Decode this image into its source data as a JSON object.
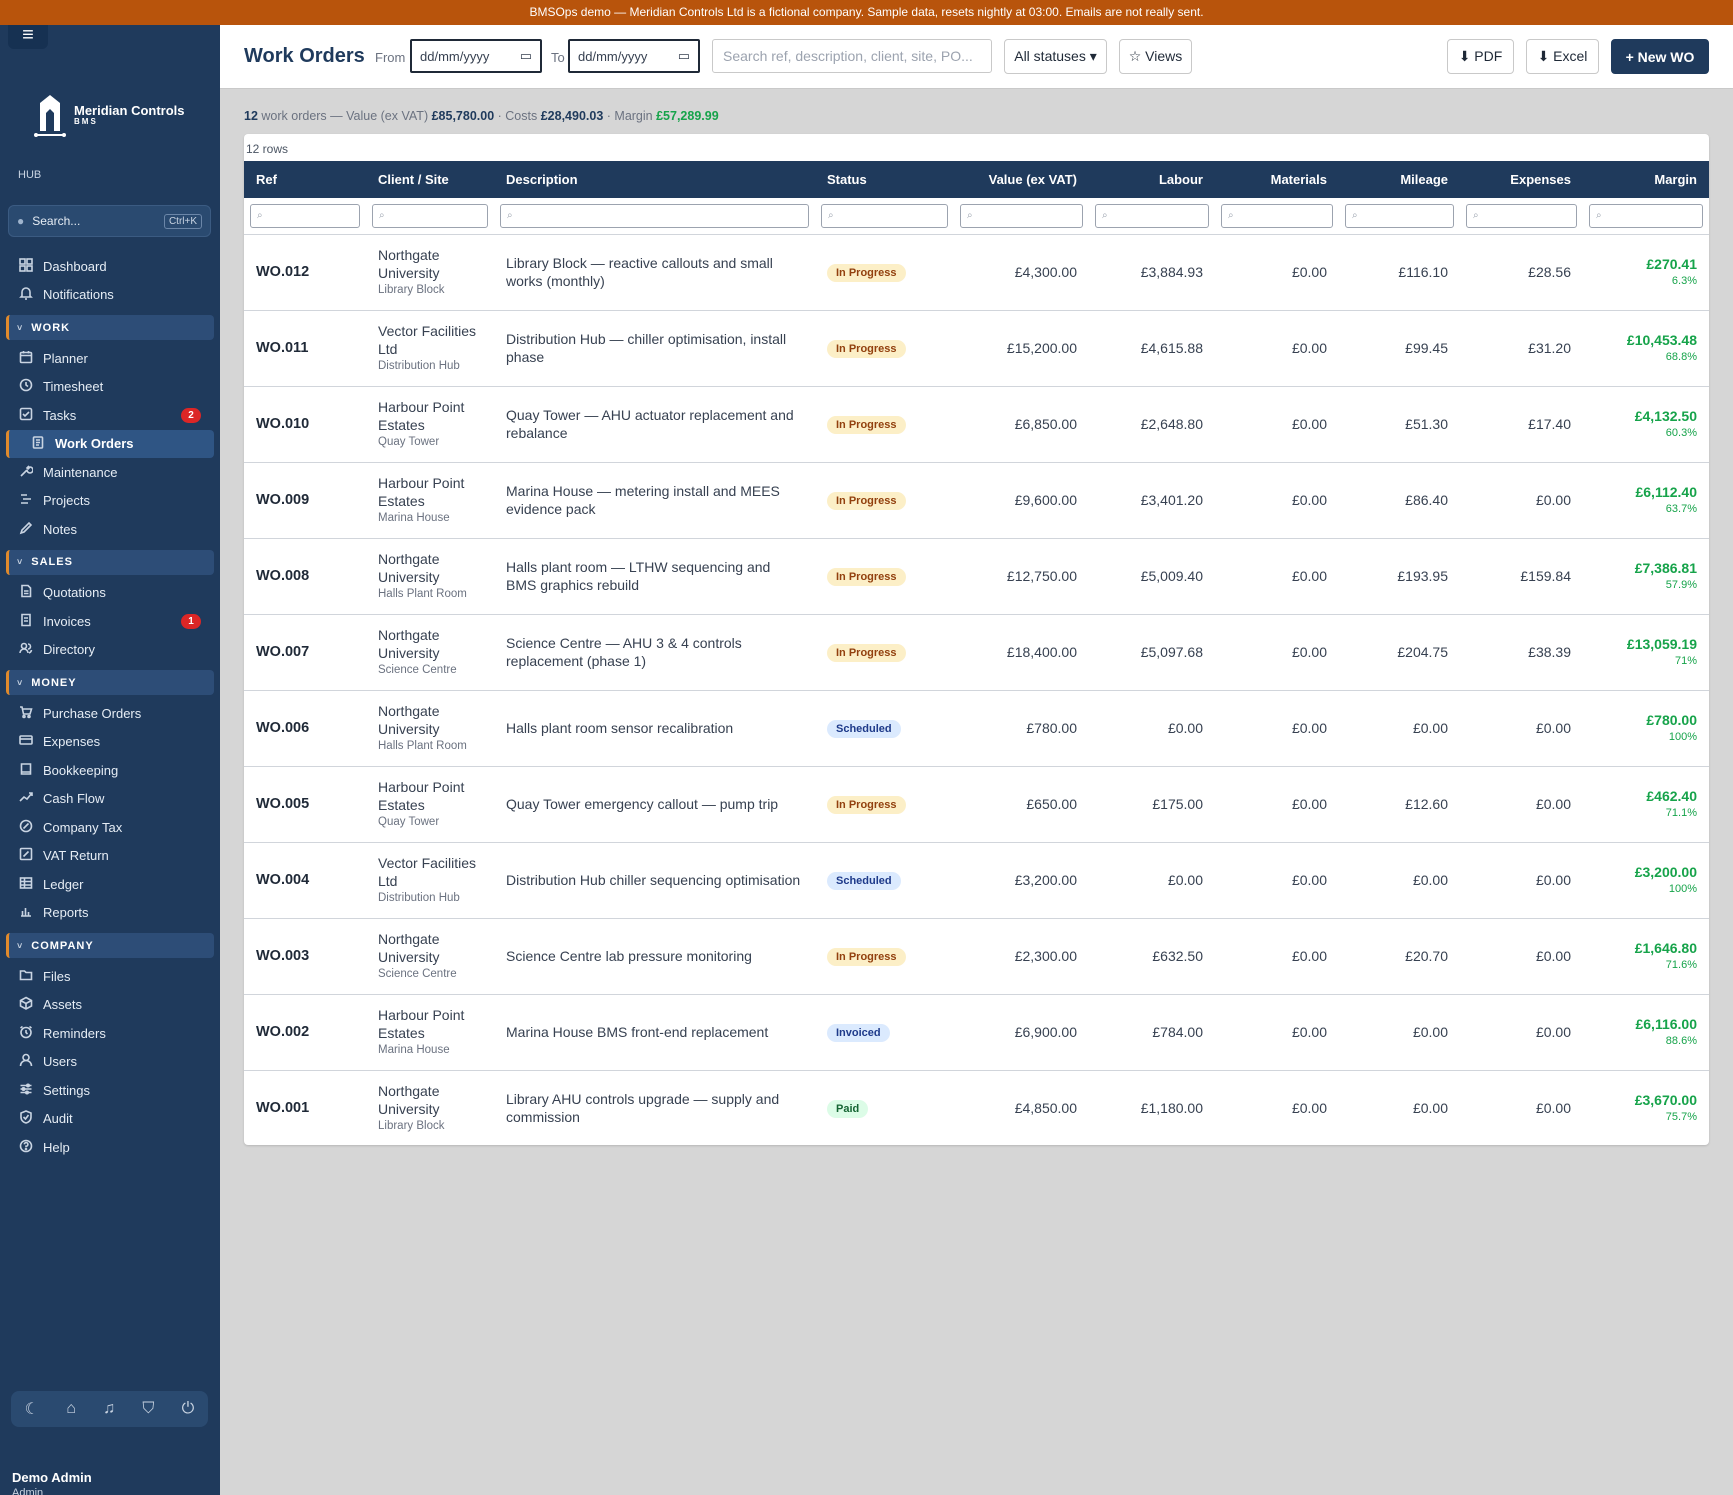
{
  "banner": "BMSOps demo — Meridian Controls Ltd is a fictional company. Sample data, resets nightly at 03:00. Emails are not really sent.",
  "sidebar": {
    "brand_name": "Meridian Controls",
    "brand_sub": "BMS",
    "hub_label": "HUB",
    "search_placeholder": "Search...",
    "search_shortcut": "Ctrl+K",
    "top_items": [
      {
        "label": "Dashboard",
        "icon": "grid-icon"
      },
      {
        "label": "Notifications",
        "icon": "bell-icon"
      }
    ],
    "sections": [
      {
        "title": "WORK",
        "items": [
          {
            "label": "Planner",
            "icon": "calendar-icon"
          },
          {
            "label": "Timesheet",
            "icon": "clock-icon"
          },
          {
            "label": "Tasks",
            "icon": "checkbox-icon",
            "badge": "2"
          },
          {
            "label": "Work Orders",
            "icon": "clipboard-icon",
            "active": true
          },
          {
            "label": "Maintenance",
            "icon": "wrench-icon"
          },
          {
            "label": "Projects",
            "icon": "projects-icon"
          },
          {
            "label": "Notes",
            "icon": "pencil-icon"
          }
        ]
      },
      {
        "title": "SALES",
        "items": [
          {
            "label": "Quotations",
            "icon": "document-icon"
          },
          {
            "label": "Invoices",
            "icon": "invoice-icon",
            "badge": "1"
          },
          {
            "label": "Directory",
            "icon": "people-icon"
          }
        ]
      },
      {
        "title": "MONEY",
        "items": [
          {
            "label": "Purchase Orders",
            "icon": "cart-icon"
          },
          {
            "label": "Expenses",
            "icon": "card-icon"
          },
          {
            "label": "Bookkeeping",
            "icon": "book-icon"
          },
          {
            "label": "Cash Flow",
            "icon": "trend-icon"
          },
          {
            "label": "Company Tax",
            "icon": "tax-icon"
          },
          {
            "label": "VAT Return",
            "icon": "vat-icon"
          },
          {
            "label": "Ledger",
            "icon": "table-icon"
          },
          {
            "label": "Reports",
            "icon": "bar-chart-icon"
          }
        ]
      },
      {
        "title": "COMPANY",
        "items": [
          {
            "label": "Files",
            "icon": "folder-icon"
          },
          {
            "label": "Assets",
            "icon": "box-icon"
          },
          {
            "label": "Reminders",
            "icon": "alarm-icon"
          },
          {
            "label": "Users",
            "icon": "user-icon"
          },
          {
            "label": "Settings",
            "icon": "sliders-icon"
          },
          {
            "label": "Audit",
            "icon": "shield-check-icon"
          },
          {
            "label": "Help",
            "icon": "help-icon"
          }
        ]
      }
    ],
    "bottom_icons": [
      "moon-icon",
      "home-icon",
      "bell-icon",
      "shield-icon",
      "power-icon"
    ],
    "user_name": "Demo Admin",
    "user_role": "Admin"
  },
  "topbar": {
    "title": "Work Orders",
    "from_label": "From",
    "to_label": "To",
    "from_value": "dd/mm/yyyy",
    "to_value": "dd/mm/yyyy",
    "search_placeholder": "Search ref, description, client, site, PO...",
    "status_filter": "All statuses ▾",
    "views_label": "☆ Views",
    "pdf_label": "⬇ PDF",
    "excel_label": "⬇ Excel",
    "new_label": "+ New WO"
  },
  "summary": {
    "count": "12",
    "count_text": "work orders — Value (ex VAT)",
    "value": "£85,780.00",
    "costs_text": "· Costs",
    "costs": "£28,490.03",
    "margin_text": "· Margin",
    "margin": "£57,289.99"
  },
  "table": {
    "row_count": "12 rows",
    "filter_placeholder": "⌕",
    "columns": [
      "Ref",
      "Client / Site",
      "Description",
      "Status",
      "Value (ex VAT)",
      "Labour",
      "Materials",
      "Mileage",
      "Expenses",
      "Margin"
    ],
    "rows": [
      {
        "ref": "WO.012",
        "client": "Northgate University",
        "site": "Library Block",
        "description": "Library Block — reactive callouts and small works (monthly)",
        "status": "In Progress",
        "status_kind": "progress",
        "value": "£4,300.00",
        "labour": "£3,884.93",
        "materials": "£0.00",
        "mileage": "£116.10",
        "expenses": "£28.56",
        "margin": "£270.41",
        "margin_pct": "6.3%"
      },
      {
        "ref": "WO.011",
        "client": "Vector Facilities Ltd",
        "site": "Distribution Hub",
        "description": "Distribution Hub — chiller optimisation, install phase",
        "status": "In Progress",
        "status_kind": "progress",
        "value": "£15,200.00",
        "labour": "£4,615.88",
        "materials": "£0.00",
        "mileage": "£99.45",
        "expenses": "£31.20",
        "margin": "£10,453.48",
        "margin_pct": "68.8%"
      },
      {
        "ref": "WO.010",
        "client": "Harbour Point Estates",
        "site": "Quay Tower",
        "description": "Quay Tower — AHU actuator replacement and rebalance",
        "status": "In Progress",
        "status_kind": "progress",
        "value": "£6,850.00",
        "labour": "£2,648.80",
        "materials": "£0.00",
        "mileage": "£51.30",
        "expenses": "£17.40",
        "margin": "£4,132.50",
        "margin_pct": "60.3%"
      },
      {
        "ref": "WO.009",
        "client": "Harbour Point Estates",
        "site": "Marina House",
        "description": "Marina House — metering install and MEES evidence pack",
        "status": "In Progress",
        "status_kind": "progress",
        "value": "£9,600.00",
        "labour": "£3,401.20",
        "materials": "£0.00",
        "mileage": "£86.40",
        "expenses": "£0.00",
        "margin": "£6,112.40",
        "margin_pct": "63.7%"
      },
      {
        "ref": "WO.008",
        "client": "Northgate University",
        "site": "Halls Plant Room",
        "description": "Halls plant room — LTHW sequencing and BMS graphics rebuild",
        "status": "In Progress",
        "status_kind": "progress",
        "value": "£12,750.00",
        "labour": "£5,009.40",
        "materials": "£0.00",
        "mileage": "£193.95",
        "expenses": "£159.84",
        "margin": "£7,386.81",
        "margin_pct": "57.9%"
      },
      {
        "ref": "WO.007",
        "client": "Northgate University",
        "site": "Science Centre",
        "description": "Science Centre — AHU 3 & 4 controls replacement (phase 1)",
        "status": "In Progress",
        "status_kind": "progress",
        "value": "£18,400.00",
        "labour": "£5,097.68",
        "materials": "£0.00",
        "mileage": "£204.75",
        "expenses": "£38.39",
        "margin": "£13,059.19",
        "margin_pct": "71%"
      },
      {
        "ref": "WO.006",
        "client": "Northgate University",
        "site": "Halls Plant Room",
        "description": "Halls plant room sensor recalibration",
        "status": "Scheduled",
        "status_kind": "scheduled",
        "value": "£780.00",
        "labour": "£0.00",
        "materials": "£0.00",
        "mileage": "£0.00",
        "expenses": "£0.00",
        "margin": "£780.00",
        "margin_pct": "100%"
      },
      {
        "ref": "WO.005",
        "client": "Harbour Point Estates",
        "site": "Quay Tower",
        "description": "Quay Tower emergency callout — pump trip",
        "status": "In Progress",
        "status_kind": "progress",
        "value": "£650.00",
        "labour": "£175.00",
        "materials": "£0.00",
        "mileage": "£12.60",
        "expenses": "£0.00",
        "margin": "£462.40",
        "margin_pct": "71.1%"
      },
      {
        "ref": "WO.004",
        "client": "Vector Facilities Ltd",
        "site": "Distribution Hub",
        "description": "Distribution Hub chiller sequencing optimisation",
        "status": "Scheduled",
        "status_kind": "scheduled",
        "value": "£3,200.00",
        "labour": "£0.00",
        "materials": "£0.00",
        "mileage": "£0.00",
        "expenses": "£0.00",
        "margin": "£3,200.00",
        "margin_pct": "100%"
      },
      {
        "ref": "WO.003",
        "client": "Northgate University",
        "site": "Science Centre",
        "description": "Science Centre lab pressure monitoring",
        "status": "In Progress",
        "status_kind": "progress",
        "value": "£2,300.00",
        "labour": "£632.50",
        "materials": "£0.00",
        "mileage": "£20.70",
        "expenses": "£0.00",
        "margin": "£1,646.80",
        "margin_pct": "71.6%"
      },
      {
        "ref": "WO.002",
        "client": "Harbour Point Estates",
        "site": "Marina House",
        "description": "Marina House BMS front-end replacement",
        "status": "Invoiced",
        "status_kind": "invoiced",
        "value": "£6,900.00",
        "labour": "£784.00",
        "materials": "£0.00",
        "mileage": "£0.00",
        "expenses": "£0.00",
        "margin": "£6,116.00",
        "margin_pct": "88.6%"
      },
      {
        "ref": "WO.001",
        "client": "Northgate University",
        "site": "Library Block",
        "description": "Library AHU controls upgrade — supply and commission",
        "status": "Paid",
        "status_kind": "paid",
        "value": "£4,850.00",
        "labour": "£1,180.00",
        "materials": "£0.00",
        "mileage": "£0.00",
        "expenses": "£0.00",
        "margin": "£3,670.00",
        "margin_pct": "75.7%"
      }
    ]
  }
}
